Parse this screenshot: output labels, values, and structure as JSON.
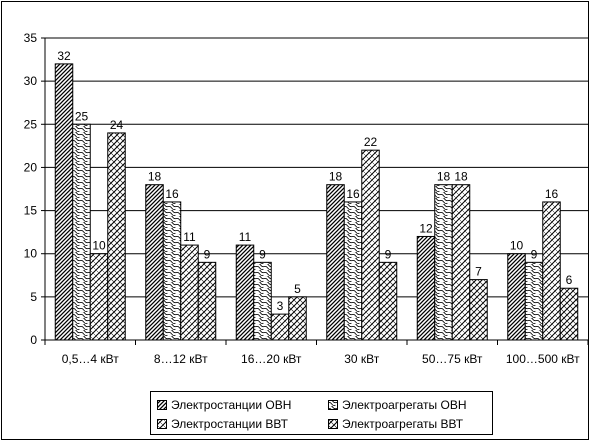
{
  "chart_data": {
    "type": "bar",
    "categories": [
      "0,5…4 кВт",
      "8…12 кВт",
      "16…20 кВт",
      "30 кВт",
      "50…75 кВт",
      "100…500 кВт"
    ],
    "series": [
      {
        "name": "Электростанции ОВН",
        "values": [
          32,
          18,
          11,
          18,
          12,
          10
        ],
        "pattern": "dense-diag"
      },
      {
        "name": "Электроагрегаты ОВН",
        "values": [
          25,
          16,
          9,
          16,
          18,
          9
        ],
        "pattern": "wavy"
      },
      {
        "name": "Электростанции ВВТ",
        "values": [
          10,
          11,
          3,
          22,
          18,
          16
        ],
        "pattern": "zigzag"
      },
      {
        "name": "Электроагрегаты ВВТ",
        "values": [
          24,
          9,
          5,
          9,
          7,
          6
        ],
        "pattern": "cross"
      }
    ],
    "y_ticks": [
      "0",
      "5",
      "10",
      "15",
      "20",
      "25",
      "30",
      "35"
    ],
    "ylim": [
      0,
      35
    ],
    "grid": true,
    "legend_position": "bottom"
  }
}
